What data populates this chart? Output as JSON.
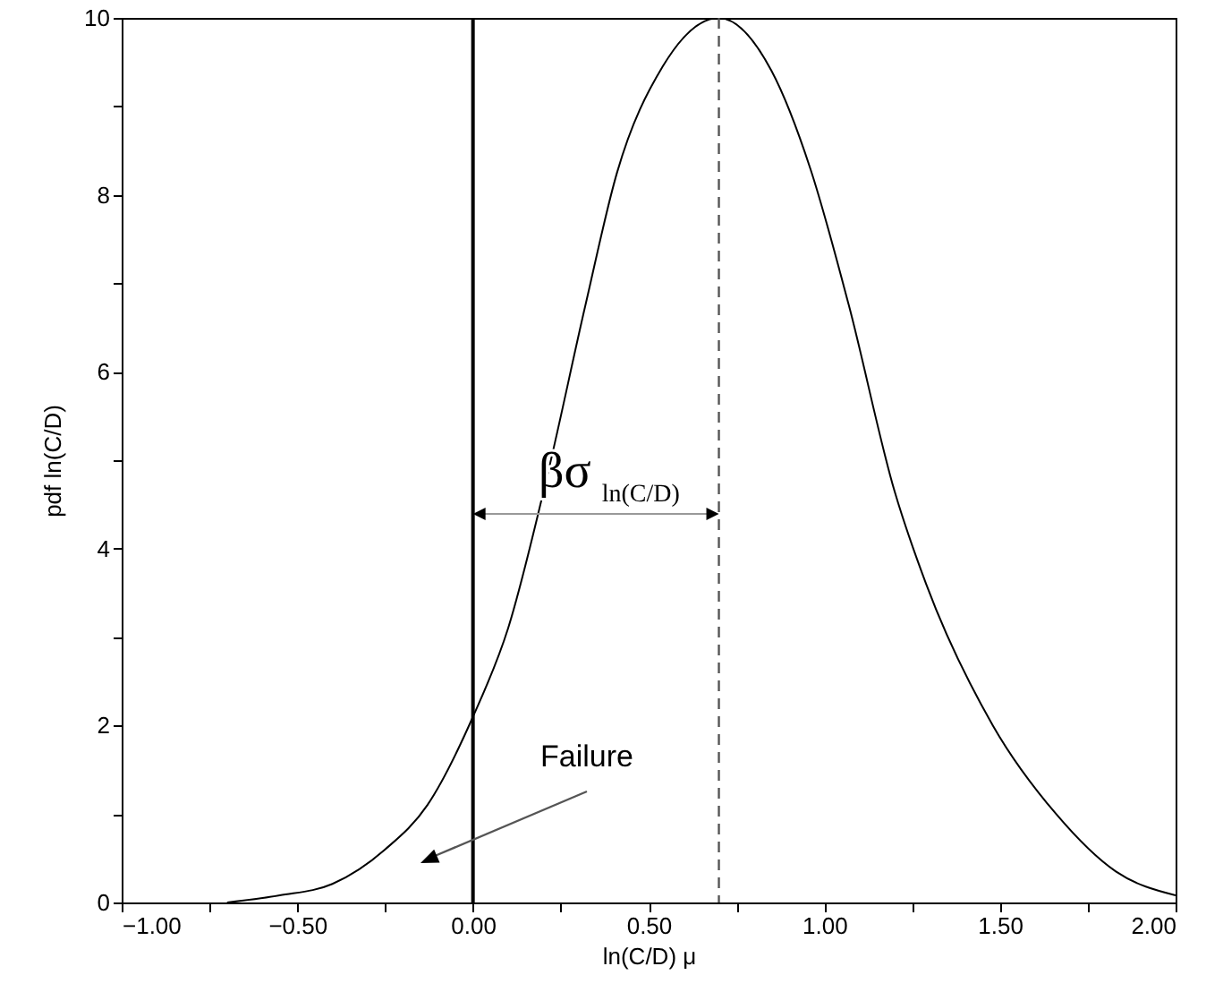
{
  "chart_data": {
    "type": "line",
    "xlabel": "ln(C/D) μ",
    "ylabel": "pdf ln(C/D)",
    "x": [
      -0.7,
      -0.55,
      -0.4,
      -0.25,
      -0.13,
      0,
      0.1,
      0.21,
      0.32,
      0.41,
      0.54,
      0.7,
      0.85,
      0.96,
      1.07,
      1.2,
      1.29,
      1.48,
      1.66,
      1.83,
      2.0
    ],
    "series": [
      {
        "color": "#000000",
        "values": [
          0,
          0.08,
          0.21,
          0.6,
          1.1,
          2.1,
          3.1,
          4.8,
          6.75,
          8.25,
          9.45,
          10,
          9.4,
          8.3,
          6.75,
          4.65,
          3.6,
          2.0,
          1.0,
          0.35,
          0.08
        ]
      }
    ],
    "xlim": [
      -1,
      2
    ],
    "ylim": [
      0,
      10
    ],
    "xticks": [
      {
        "value": -1,
        "label": "−1.00"
      },
      {
        "value": -0.75,
        "label": null
      },
      {
        "value": -0.5,
        "label": "−0.50"
      },
      {
        "value": -0.25,
        "label": null
      },
      {
        "value": 0,
        "label": "0.00"
      },
      {
        "value": 0.25,
        "label": null
      },
      {
        "value": 0.5,
        "label": "0.50"
      },
      {
        "value": 0.75,
        "label": null
      },
      {
        "value": 1,
        "label": "1.00"
      },
      {
        "value": 1.25,
        "label": null
      },
      {
        "value": 1.5,
        "label": "1.50"
      },
      {
        "value": 1.75,
        "label": null
      },
      {
        "value": 2,
        "label": "2.00"
      }
    ],
    "yticks": [
      0,
      {
        "value": 1,
        "label": null
      },
      2,
      {
        "value": 3,
        "label": null
      },
      4,
      {
        "value": 5,
        "label": null
      },
      6,
      {
        "value": 7,
        "label": null
      },
      8,
      {
        "value": 9,
        "label": null
      },
      10
    ],
    "ref_lines": [
      {
        "axis": "x",
        "value": 0,
        "color": "#000000",
        "line_style": "solid"
      },
      {
        "axis": "x",
        "value": 0.7,
        "color": "#555555",
        "line_style": "dashed"
      }
    ],
    "annotations": [
      "βσ$_{ln(C/D)}$",
      "Failure"
    ],
    "grid": false,
    "marker": "none",
    "line_style": "solid"
  }
}
